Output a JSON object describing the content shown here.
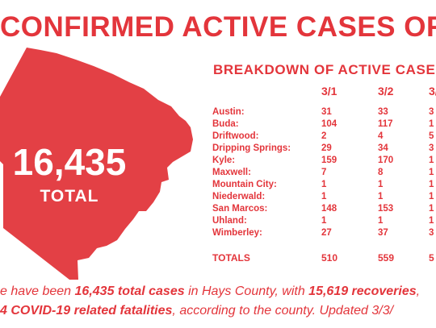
{
  "headline": "CONFIRMED ACTIVE CASES OF COVID",
  "total": {
    "number": "16,435",
    "label": "TOTAL"
  },
  "breakdown": {
    "title": "BREAKDOWN OF ACTIVE CASES",
    "columns": [
      "3/1",
      "3/2",
      "3/"
    ],
    "rows": [
      {
        "name": "Austin:",
        "v1": "31",
        "v2": "33",
        "v3": "3"
      },
      {
        "name": "Buda:",
        "v1": "104",
        "v2": "117",
        "v3": "1"
      },
      {
        "name": "Driftwood:",
        "v1": "2",
        "v2": "4",
        "v3": "5"
      },
      {
        "name": "Dripping Springs:",
        "v1": "29",
        "v2": "34",
        "v3": "3"
      },
      {
        "name": "Kyle:",
        "v1": "159",
        "v2": "170",
        "v3": "1"
      },
      {
        "name": "Maxwell:",
        "v1": "7",
        "v2": "8",
        "v3": "1"
      },
      {
        "name": "Mountain City:",
        "v1": "1",
        "v2": "1",
        "v3": "1"
      },
      {
        "name": "Niederwald:",
        "v1": "1",
        "v2": "1",
        "v3": "1"
      },
      {
        "name": "San Marcos:",
        "v1": "148",
        "v2": "153",
        "v3": "1"
      },
      {
        "name": "Uhland:",
        "v1": "1",
        "v2": "1",
        "v3": "1"
      },
      {
        "name": "Wimberley:",
        "v1": "27",
        "v2": "37",
        "v3": "3"
      }
    ],
    "totals": {
      "name": "TOTALS",
      "v1": "510",
      "v2": "559",
      "v3": "5"
    }
  },
  "footer": {
    "line1_a": "e have been ",
    "line1_b": "16,435 total cases",
    "line1_c": " in Hays County, with ",
    "line1_d": "15,619 recoveries",
    "line1_e": ",",
    "line2_a": "4 COVID-19 related fatalities",
    "line2_b": ", according to the county. Updated 3/3/"
  },
  "colors": {
    "accent": "#e3353b",
    "background": "#ffffff"
  }
}
